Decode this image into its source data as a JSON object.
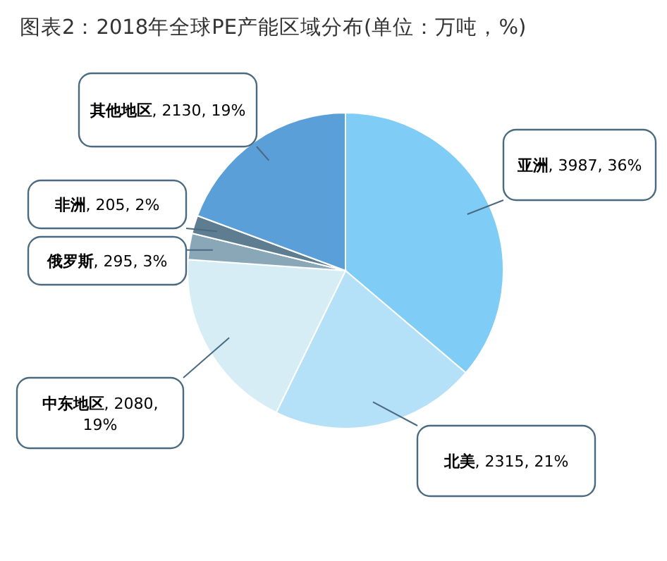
{
  "chart_data": {
    "type": "pie",
    "title": "图表2：2018年全球PE产能区域分布(单位：万吨，%)",
    "categories": [
      "亚洲",
      "北美",
      "中东地区",
      "俄罗斯",
      "非洲",
      "其他地区"
    ],
    "values": [
      3987,
      2315,
      2080,
      295,
      205,
      2130
    ],
    "value_labels": [
      ", 3987, 36%",
      ", 2315, 21%",
      ", 2080, 19%",
      ", 295, 3%",
      ", 205, 2%",
      ", 2130, 19%"
    ],
    "colors": [
      "#7fccf6",
      "#b5e1f8",
      "#d6edf6",
      "#8aa7b8",
      "#5f7d91",
      "#5b9fd8"
    ],
    "legend": false
  }
}
